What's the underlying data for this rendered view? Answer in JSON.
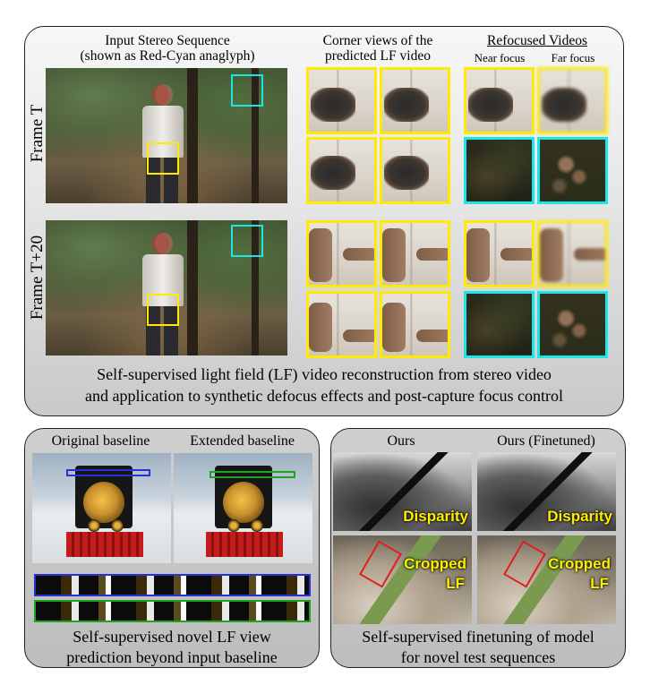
{
  "top_panel": {
    "header_input_line1": "Input Stereo Sequence",
    "header_input_line2": "(shown as Red-Cyan anaglyph)",
    "header_corner_line1": "Corner views of the",
    "header_corner_line2": "predicted LF video",
    "header_refocused": "Refocused Videos",
    "near_focus": "Near focus",
    "far_focus": "Far focus",
    "row1_label": "Frame T",
    "row2_label": "Frame T+20",
    "caption_line1": "Self-supervised light field (LF) video reconstruction from stereo video",
    "caption_line2": "and application to synthetic defocus effects and post-capture focus control"
  },
  "bottom_left": {
    "original_baseline": "Original baseline",
    "extended_baseline": "Extended baseline",
    "caption_line1": "Self-supervised novel LF view",
    "caption_line2": "prediction beyond input baseline"
  },
  "bottom_right": {
    "ours": "Ours",
    "ours_finetuned": "Ours (Finetuned)",
    "disparity": "Disparity",
    "cropped": "Cropped",
    "lf": "LF",
    "caption_line1": "Self-supervised finetuning of model",
    "caption_line2": "for novel test sequences"
  },
  "colors": {
    "yellow_box": "#ffea00",
    "cyan_box": "#19e6e6",
    "blue_box": "#2a30d8",
    "green_box": "#1ea41e",
    "red_box": "#e01e1e",
    "overlay_label": "#ffee00"
  }
}
